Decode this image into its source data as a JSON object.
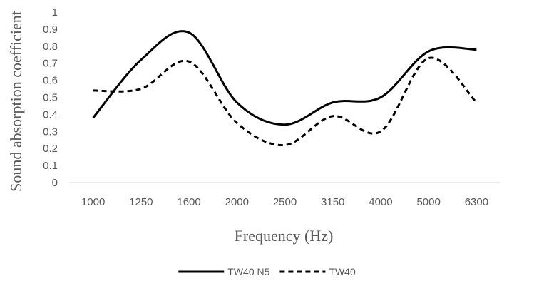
{
  "chart_data": {
    "type": "line",
    "title": "",
    "xlabel": "Frequency (Hz)",
    "ylabel": "Sound absorption coefficient",
    "categories": [
      "1000",
      "1250",
      "1600",
      "2000",
      "2500",
      "3150",
      "4000",
      "5000",
      "6300"
    ],
    "ylim": [
      0,
      1
    ],
    "yticks": [
      "0",
      "0.1",
      "0.2",
      "0.3",
      "0.4",
      "0.5",
      "0.6",
      "0.7",
      "0.8",
      "0.9",
      "1"
    ],
    "grid": false,
    "legend_position": "bottom",
    "series": [
      {
        "name": "TW40 N5",
        "values": [
          0.38,
          0.72,
          0.88,
          0.47,
          0.34,
          0.47,
          0.5,
          0.77,
          0.78
        ],
        "style": "solid",
        "color": "#000000"
      },
      {
        "name": "TW40",
        "values": [
          0.54,
          0.55,
          0.71,
          0.35,
          0.22,
          0.39,
          0.3,
          0.73,
          0.47
        ],
        "style": "dashed",
        "color": "#000000"
      }
    ]
  }
}
